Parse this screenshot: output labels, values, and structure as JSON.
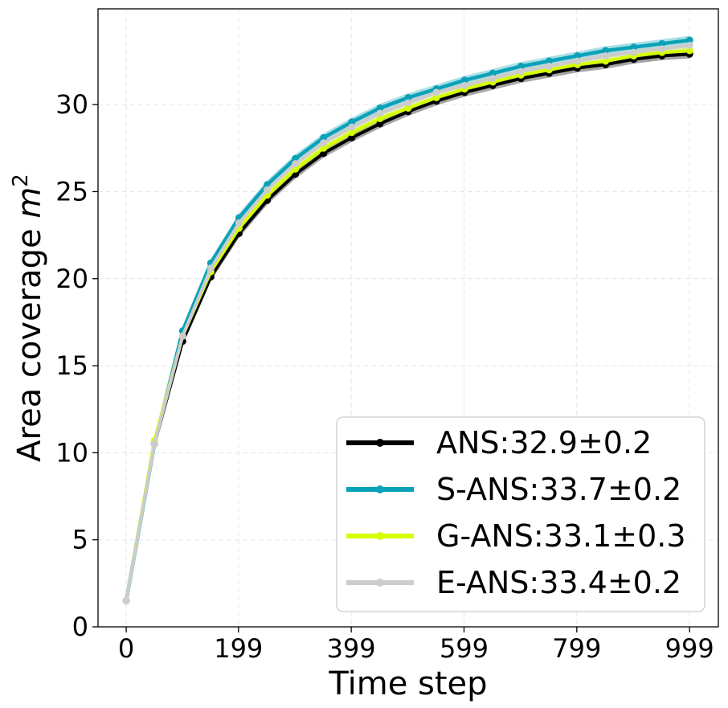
{
  "chart_data": {
    "type": "line",
    "xlabel": "Time step",
    "ylabel": "Area coverage",
    "ylabel_unit_base": "m",
    "ylabel_unit_exp": "2",
    "xlim": [
      -50,
      1050
    ],
    "ylim": [
      0,
      35.5
    ],
    "xticks": [
      0,
      199,
      399,
      599,
      799,
      999
    ],
    "yticks": [
      0,
      5,
      10,
      15,
      20,
      25,
      30
    ],
    "grid": true,
    "legend_position": "lower-right",
    "x": [
      0,
      50,
      100,
      150,
      200,
      250,
      300,
      350,
      400,
      450,
      500,
      550,
      600,
      650,
      700,
      750,
      800,
      850,
      900,
      950,
      999
    ],
    "series": [
      {
        "name": "ANS:32.9±0.2",
        "color": "#000000",
        "band": 0.25,
        "values": [
          1.5,
          10.5,
          16.4,
          20.1,
          22.6,
          24.5,
          26.0,
          27.2,
          28.1,
          28.9,
          29.6,
          30.2,
          30.7,
          31.1,
          31.5,
          31.8,
          32.1,
          32.3,
          32.6,
          32.8,
          32.9
        ]
      },
      {
        "name": "S-ANS:33.7±0.2",
        "color": "#0aa2b8",
        "band": 0.25,
        "values": [
          1.5,
          10.5,
          17.0,
          20.9,
          23.5,
          25.4,
          26.9,
          28.1,
          29.0,
          29.8,
          30.4,
          30.9,
          31.4,
          31.8,
          32.2,
          32.5,
          32.8,
          33.1,
          33.3,
          33.5,
          33.7
        ]
      },
      {
        "name": "G-ANS:33.1±0.3",
        "color": "#d4ff00",
        "band": 0.3,
        "values": [
          1.5,
          10.7,
          16.7,
          20.4,
          22.9,
          24.8,
          26.3,
          27.5,
          28.4,
          29.2,
          29.8,
          30.4,
          30.9,
          31.3,
          31.7,
          32.0,
          32.3,
          32.5,
          32.8,
          33.0,
          33.1
        ]
      },
      {
        "name": "E-ANS:33.4±0.2",
        "color": "#cccccc",
        "band": 0.25,
        "values": [
          1.5,
          10.5,
          16.7,
          20.6,
          23.2,
          25.1,
          26.6,
          27.8,
          28.7,
          29.5,
          30.1,
          30.7,
          31.1,
          31.5,
          31.9,
          32.2,
          32.5,
          32.8,
          33.0,
          33.2,
          33.4
        ]
      }
    ]
  }
}
